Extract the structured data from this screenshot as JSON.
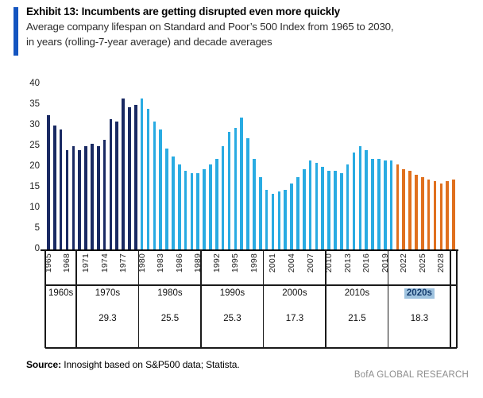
{
  "header": {
    "exhibit_title": "Exhibit 13: Incumbents are getting disrupted even more quickly",
    "subtitle": "Average company lifespan on Standard and Poor’s 500 Index from 1965 to 2030, in years (rolling-7-year average) and decade averages"
  },
  "chart_data": {
    "type": "bar",
    "title": "Average company lifespan on Standard and Poor’s 500 Index from 1965 to 2030, in years (rolling-7-year average) and decade averages",
    "xlabel": "",
    "ylabel": "years",
    "ylim": [
      0,
      40
    ],
    "yticks": [
      0,
      5,
      10,
      15,
      20,
      25,
      30,
      35,
      40
    ],
    "grid": false,
    "legend": "none",
    "x_start_year": 1965,
    "x_end_year": 2030,
    "x_tick_years": [
      1965,
      1968,
      1971,
      1974,
      1977,
      1980,
      1983,
      1986,
      1989,
      1992,
      1995,
      1998,
      2001,
      2004,
      2007,
      2010,
      2013,
      2016,
      2019,
      2022,
      2025,
      2028
    ],
    "series": [
      {
        "name": "1965-1979 dark navy bars",
        "color": "#1A2A63",
        "start_year": 1965,
        "values": [
          32.5,
          30,
          29,
          24,
          25,
          24,
          25,
          25.5,
          25,
          26.5,
          31.5,
          31,
          36.5,
          34.5,
          35
        ]
      },
      {
        "name": "1980-2020 light blue bars",
        "color": "#29ABE2",
        "start_year": 1980,
        "values": [
          36.5,
          34,
          31,
          29,
          24.5,
          22.5,
          20.5,
          19,
          18.5,
          18.5,
          19.5,
          20.5,
          22,
          25,
          28.5,
          29.5,
          32,
          27,
          22,
          17.5,
          14.5,
          13.5,
          14,
          14.5,
          16,
          17.5,
          19.5,
          21.5,
          21,
          20,
          19,
          19,
          18.5,
          20.5,
          23.5,
          25,
          24,
          22,
          22,
          21.5,
          21.5
        ]
      },
      {
        "name": "2021-2030 orange bars",
        "color": "#E0701E",
        "start_year": 2021,
        "values": [
          20.5,
          19.5,
          19,
          18,
          17.5,
          17,
          16.5,
          16,
          16.5,
          17
        ]
      }
    ],
    "decade_table": [
      {
        "label": "1960s",
        "span_years": 5,
        "average": "",
        "highlighted": false
      },
      {
        "label": "1970s",
        "span_years": 10,
        "average": "29.3",
        "highlighted": false
      },
      {
        "label": "1980s",
        "span_years": 10,
        "average": "25.5",
        "highlighted": false
      },
      {
        "label": "1990s",
        "span_years": 10,
        "average": "25.3",
        "highlighted": false
      },
      {
        "label": "2000s",
        "span_years": 10,
        "average": "17.3",
        "highlighted": false
      },
      {
        "label": "2010s",
        "span_years": 10,
        "average": "21.5",
        "highlighted": false
      },
      {
        "label": "2020s",
        "span_years": 10,
        "average": "18.3",
        "highlighted": true
      },
      {
        "label": "",
        "span_years": 1,
        "average": "",
        "highlighted": false
      }
    ]
  },
  "footer": {
    "source_label": "Source:",
    "source_text": " Innosight based on S&P500 data; Statista.",
    "brand": "BofA GLOBAL RESEARCH"
  },
  "colors": {
    "accent_bar": "#1455C0",
    "bar_navy": "#1A2A63",
    "bar_light_blue": "#29ABE2",
    "bar_orange": "#E0701E",
    "highlight_2020s_bg": "#9FC3DF",
    "highlight_2020s_text": "#123A6D",
    "axis_line": "#000000",
    "table_line": "#1a1a1a",
    "brand_text": "#8c8c8c"
  }
}
